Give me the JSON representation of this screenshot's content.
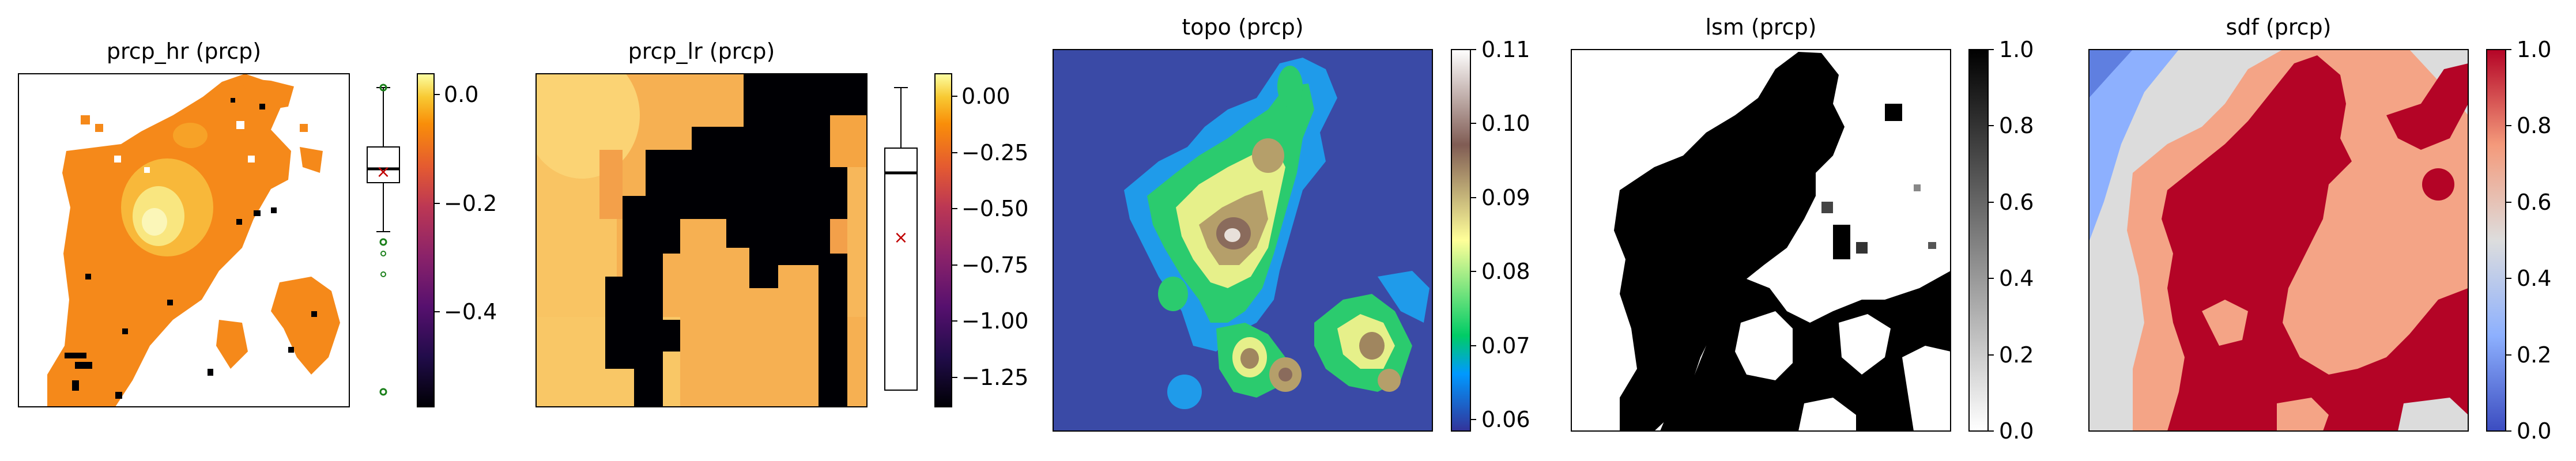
{
  "chart_data": [
    {
      "type": "heatmap",
      "title": "prcp_hr (prcp)",
      "colormap": "inferno",
      "has_boxplot": true,
      "colorbar": {
        "min": -0.57,
        "max": 0.04,
        "ticks": [
          "0.0",
          "−0.2",
          "−0.4"
        ],
        "tick_values": [
          0.0,
          -0.2,
          -0.4
        ]
      },
      "boxplot": {
        "median": -0.07,
        "q1": -0.11,
        "q3": 0.04,
        "whisker_low": -0.26,
        "whisker_high": 0.08,
        "mean": -0.04,
        "outliers": [
          -0.36,
          -0.38,
          -0.44,
          -0.56,
          0.06
        ]
      }
    },
    {
      "type": "heatmap",
      "title": "prcp_lr (prcp)",
      "colormap": "inferno",
      "has_boxplot": true,
      "colorbar": {
        "min": -1.38,
        "max": 0.1,
        "ticks": [
          "0.00",
          "−0.25",
          "−0.50",
          "−0.75",
          "−1.00",
          "−1.25"
        ],
        "tick_values": [
          0.0,
          -0.25,
          -0.5,
          -0.75,
          -1.0,
          -1.25
        ]
      },
      "boxplot": {
        "median": -0.27,
        "q1": -0.4,
        "q3": -0.12,
        "whisker_low": -1.32,
        "whisker_high": 0.02,
        "mean": -0.66,
        "outliers": []
      }
    },
    {
      "type": "heatmap",
      "title": "topo (prcp)",
      "colormap": "terrain",
      "has_boxplot": false,
      "colorbar": {
        "min": 0.058,
        "max": 0.11,
        "ticks": [
          "0.11",
          "0.10",
          "0.09",
          "0.08",
          "0.07",
          "0.06"
        ],
        "tick_values": [
          0.11,
          0.1,
          0.09,
          0.08,
          0.07,
          0.06
        ]
      }
    },
    {
      "type": "heatmap",
      "title": "lsm (prcp)",
      "colormap": "binary",
      "has_boxplot": false,
      "colorbar": {
        "min": 0.0,
        "max": 1.0,
        "ticks": [
          "1.0",
          "0.8",
          "0.6",
          "0.4",
          "0.2",
          "0.0"
        ],
        "tick_values": [
          1.0,
          0.8,
          0.6,
          0.4,
          0.2,
          0.0
        ]
      }
    },
    {
      "type": "heatmap",
      "title": "sdf (prcp)",
      "colormap": "coolwarm",
      "has_boxplot": false,
      "colorbar": {
        "min": 0.0,
        "max": 1.0,
        "ticks": [
          "1.0",
          "0.8",
          "0.6",
          "0.4",
          "0.2",
          "0.0"
        ],
        "tick_values": [
          1.0,
          0.8,
          0.6,
          0.4,
          0.2,
          0.0
        ]
      }
    }
  ]
}
